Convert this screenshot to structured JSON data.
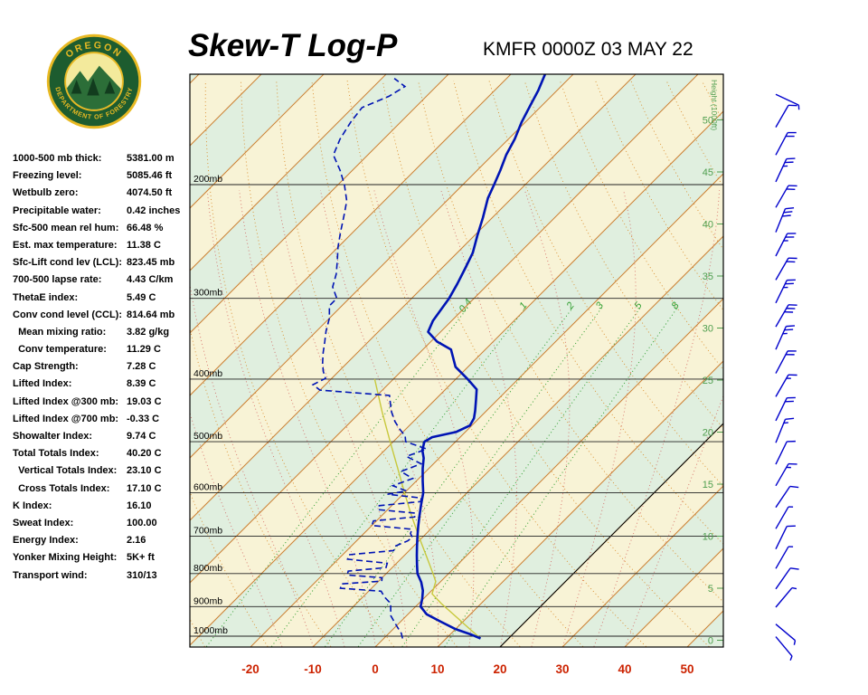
{
  "header": {
    "title": "Skew-T Log-P",
    "station_time": "KMFR 0000Z 03 MAY 22"
  },
  "logo": {
    "top_text": "OREGON",
    "bottom_text": "DEPARTMENT OF FORESTRY"
  },
  "indices": [
    {
      "label": "1000-500 mb thick:",
      "value": "5381.00 m"
    },
    {
      "label": "Freezing level:",
      "value": "5085.46 ft"
    },
    {
      "label": "Wetbulb zero:",
      "value": "4074.50 ft"
    },
    {
      "label": "Precipitable water:",
      "value": "0.42 inches"
    },
    {
      "label": "Sfc-500 mean rel hum:",
      "value": "66.48 %"
    },
    {
      "label": "Est. max temperature:",
      "value": "11.38 C"
    },
    {
      "label": "Sfc-Lift cond lev (LCL):",
      "value": "823.45 mb"
    },
    {
      "label": "700-500 lapse rate:",
      "value": "4.43 C/km"
    },
    {
      "label": "ThetaE index:",
      "value": "5.49 C"
    },
    {
      "label": "Conv cond level (CCL):",
      "value": "814.64 mb"
    },
    {
      "label": "  Mean mixing ratio:",
      "value": "3.82 g/kg"
    },
    {
      "label": "  Conv temperature:",
      "value": "11.29 C"
    },
    {
      "label": "Cap Strength:",
      "value": "7.28 C"
    },
    {
      "label": "Lifted Index:",
      "value": "8.39 C"
    },
    {
      "label": "Lifted Index @300 mb:",
      "value": "19.03 C"
    },
    {
      "label": "Lifted Index @700 mb:",
      "value": "-0.33 C"
    },
    {
      "label": "Showalter Index:",
      "value": "9.74 C"
    },
    {
      "label": "Total Totals Index:",
      "value": "40.20 C"
    },
    {
      "label": "  Vertical Totals Index:",
      "value": "23.10 C"
    },
    {
      "label": "  Cross Totals Index:",
      "value": "17.10 C"
    },
    {
      "label": "K Index:",
      "value": "16.10"
    },
    {
      "label": "Sweat Index:",
      "value": "100.00"
    },
    {
      "label": "Energy Index:",
      "value": "2.16"
    },
    {
      "label": "Yonker Mixing Height:",
      "value": "5K+ ft"
    },
    {
      "label": "Transport wind:",
      "value": "310/13"
    }
  ],
  "chart_data": {
    "type": "skewt",
    "pressure_labels": [
      "200mb",
      "300mb",
      "400mb",
      "500mb",
      "600mb",
      "700mb",
      "800mb",
      "900mb",
      "1000mb"
    ],
    "pressure_levels": [
      200,
      300,
      400,
      500,
      600,
      700,
      800,
      900,
      1000
    ],
    "temp_axis": [
      -20,
      -10,
      0,
      10,
      20,
      30,
      40,
      50
    ],
    "height_ticks": [
      50,
      45,
      40,
      35,
      30,
      25,
      20,
      15,
      10,
      5,
      0
    ],
    "height_axis_label": "Height (1000ft)",
    "mixing_ratio_lines": [
      0.4,
      1,
      2,
      3,
      5,
      8
    ],
    "isotherm_step": 10,
    "highlight_isotherm": 20,
    "temperature_profile": [
      [
        1008,
        15.5
      ],
      [
        995,
        13.5
      ],
      [
        975,
        10
      ],
      [
        950,
        6.5
      ],
      [
        925,
        3
      ],
      [
        900,
        0.8
      ],
      [
        875,
        -0.2
      ],
      [
        850,
        -1.4
      ],
      [
        825,
        -3
      ],
      [
        800,
        -5
      ],
      [
        775,
        -6.5
      ],
      [
        750,
        -8
      ],
      [
        725,
        -9.5
      ],
      [
        700,
        -11
      ],
      [
        675,
        -12.5
      ],
      [
        650,
        -14
      ],
      [
        625,
        -15.5
      ],
      [
        600,
        -17
      ],
      [
        575,
        -19
      ],
      [
        550,
        -21
      ],
      [
        530,
        -22.5
      ],
      [
        515,
        -24
      ],
      [
        500,
        -25
      ],
      [
        492,
        -24.5
      ],
      [
        483,
        -21.5
      ],
      [
        472,
        -20.3
      ],
      [
        460,
        -20.8
      ],
      [
        448,
        -21.8
      ],
      [
        430,
        -23.5
      ],
      [
        415,
        -25
      ],
      [
        400,
        -28.1
      ],
      [
        383,
        -32
      ],
      [
        360,
        -35.5
      ],
      [
        350,
        -39
      ],
      [
        338,
        -42
      ],
      [
        325,
        -43
      ],
      [
        300,
        -44
      ],
      [
        285,
        -45
      ],
      [
        270,
        -46.2
      ],
      [
        255,
        -47.5
      ],
      [
        240,
        -49.5
      ],
      [
        225,
        -51.5
      ],
      [
        210,
        -53.8
      ],
      [
        200,
        -55
      ],
      [
        190,
        -56.3
      ],
      [
        180,
        -57.8
      ],
      [
        170,
        -59
      ],
      [
        160,
        -60.6
      ],
      [
        150,
        -62
      ],
      [
        143,
        -63
      ],
      [
        135,
        -64.5
      ]
    ],
    "dewpoint_profile": [
      [
        1008,
        3
      ],
      [
        990,
        2
      ],
      [
        970,
        0.5
      ],
      [
        950,
        -1
      ],
      [
        930,
        -2.5
      ],
      [
        910,
        -3.5
      ],
      [
        890,
        -4.5
      ],
      [
        870,
        -6.5
      ],
      [
        852,
        -8
      ],
      [
        843,
        -15
      ],
      [
        830,
        -15.5
      ],
      [
        822,
        -9.5
      ],
      [
        812,
        -10
      ],
      [
        804,
        -16
      ],
      [
        793,
        -16.5
      ],
      [
        783,
        -11
      ],
      [
        771,
        -11.5
      ],
      [
        760,
        -18.5
      ],
      [
        748,
        -19
      ],
      [
        737,
        -12.5
      ],
      [
        726,
        -13
      ],
      [
        712,
        -11.8
      ],
      [
        703,
        -11.6
      ],
      [
        694,
        -12.5
      ],
      [
        683,
        -13
      ],
      [
        674,
        -20
      ],
      [
        663,
        -20.5
      ],
      [
        654,
        -14.5
      ],
      [
        645,
        -15
      ],
      [
        637,
        -21.5
      ],
      [
        628,
        -22
      ],
      [
        619,
        -16
      ],
      [
        611,
        -16.5
      ],
      [
        603,
        -22.5
      ],
      [
        596,
        -20
      ],
      [
        585,
        -23
      ],
      [
        570,
        -21
      ],
      [
        556,
        -24
      ],
      [
        541,
        -22
      ],
      [
        527,
        -25.5
      ],
      [
        513,
        -23.5
      ],
      [
        500,
        -28
      ],
      [
        490,
        -29
      ],
      [
        478,
        -31
      ],
      [
        465,
        -33
      ],
      [
        450,
        -35
      ],
      [
        437,
        -36.5
      ],
      [
        424,
        -38
      ],
      [
        416,
        -50
      ],
      [
        408,
        -52
      ],
      [
        399,
        -51
      ],
      [
        389,
        -52.5
      ],
      [
        377,
        -54
      ],
      [
        364,
        -55.5
      ],
      [
        350,
        -57
      ],
      [
        337,
        -58.5
      ],
      [
        322,
        -60
      ],
      [
        308,
        -62
      ],
      [
        300,
        -62
      ],
      [
        288,
        -64.5
      ],
      [
        275,
        -66
      ],
      [
        262,
        -68
      ],
      [
        250,
        -70
      ],
      [
        237,
        -72
      ],
      [
        224,
        -74
      ],
      [
        212,
        -76
      ],
      [
        200,
        -79
      ],
      [
        190,
        -82
      ],
      [
        180,
        -85.5
      ],
      [
        170,
        -87
      ],
      [
        160,
        -88
      ],
      [
        152,
        -88.5
      ],
      [
        146,
        -86
      ],
      [
        141,
        -85
      ],
      [
        137,
        -88
      ]
    ],
    "parcel_profile": [
      [
        1008,
        15.5
      ],
      [
        970,
        11.8
      ],
      [
        930,
        7.8
      ],
      [
        890,
        3.6
      ],
      [
        860,
        0.6
      ],
      [
        823,
        -0.8
      ],
      [
        800,
        -2.5
      ],
      [
        750,
        -6.5
      ],
      [
        700,
        -10.8
      ],
      [
        650,
        -15.3
      ],
      [
        600,
        -20
      ],
      [
        550,
        -25
      ],
      [
        500,
        -30.5
      ],
      [
        450,
        -36.5
      ],
      [
        400,
        -43
      ]
    ],
    "wind_barbs": [
      [
        145,
        115,
        0,
        1
      ],
      [
        163,
        30,
        1,
        0
      ],
      [
        180,
        28,
        2,
        0
      ],
      [
        198,
        25,
        2,
        1
      ],
      [
        217,
        30,
        2,
        0
      ],
      [
        237,
        22,
        3,
        0
      ],
      [
        258,
        27,
        2,
        1
      ],
      [
        281,
        30,
        2,
        0
      ],
      [
        305,
        26,
        2,
        1
      ],
      [
        332,
        30,
        3,
        0
      ],
      [
        360,
        24,
        2,
        1
      ],
      [
        392,
        28,
        2,
        0
      ],
      [
        426,
        30,
        1,
        1
      ],
      [
        464,
        26,
        2,
        0
      ],
      [
        502,
        22,
        1,
        1
      ],
      [
        542,
        26,
        1,
        0
      ],
      [
        585,
        30,
        1,
        1
      ],
      [
        632,
        34,
        1,
        0
      ],
      [
        682,
        30,
        0,
        1
      ],
      [
        733,
        26,
        1,
        0
      ],
      [
        786,
        30,
        0,
        1
      ],
      [
        845,
        35,
        1,
        0
      ],
      [
        902,
        40,
        0,
        1
      ],
      [
        958,
        130,
        0,
        1
      ],
      [
        1002,
        140,
        0,
        1
      ]
    ]
  },
  "colors": {
    "band_cream": "#f8f3d6",
    "band_green": "#e0efdf",
    "isotherm": "#cc8033",
    "dry_adiabat": "#d98c2b",
    "moist_adiabat": "#cc4444",
    "mixing": "#2f9e2f",
    "grid": "#222222",
    "height": "#4e9e4e",
    "trace_blue": "#0014b4",
    "parcel": "#c8c83c",
    "wind": "#0000cc",
    "temp_axis": "#cc2200",
    "highlight": "#000000",
    "logo_gold": "#e8b923",
    "logo_green": "#1d5c2f"
  }
}
